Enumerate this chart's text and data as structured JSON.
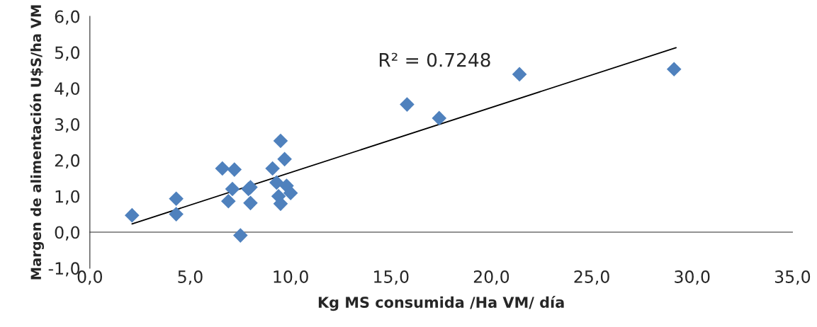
{
  "chart_data": {
    "type": "scatter",
    "xlabel": "Kg MS consumida /Ha VM/ día",
    "ylabel": "Margen de alimentación U$S/ha VM",
    "xlim": [
      0,
      35
    ],
    "ylim": [
      -1,
      6
    ],
    "xticks": [
      {
        "value": 0,
        "label": "0,0"
      },
      {
        "value": 5,
        "label": "5,0"
      },
      {
        "value": 10,
        "label": "10,0"
      },
      {
        "value": 15,
        "label": "15,0"
      },
      {
        "value": 20,
        "label": "20,0"
      },
      {
        "value": 25,
        "label": "25,0"
      },
      {
        "value": 30,
        "label": "30,0"
      },
      {
        "value": 35,
        "label": "35,0"
      }
    ],
    "yticks": [
      {
        "value": -1,
        "label": "-1,0"
      },
      {
        "value": 0,
        "label": "0,0"
      },
      {
        "value": 1,
        "label": "1,0"
      },
      {
        "value": 2,
        "label": "2,0"
      },
      {
        "value": 3,
        "label": "3,0"
      },
      {
        "value": 4,
        "label": "4,0"
      },
      {
        "value": 5,
        "label": "5,0"
      },
      {
        "value": 6,
        "label": "6,0"
      }
    ],
    "grid": false,
    "annotations": [
      "R² = 0.7248"
    ],
    "series": [
      {
        "marker": "diamond",
        "color": "#4f81bd",
        "x": [
          2.1,
          4.3,
          4.3,
          6.6,
          6.9,
          7.2,
          7.1,
          7.5,
          8.0,
          7.9,
          8.0,
          9.1,
          9.3,
          9.4,
          9.5,
          9.5,
          9.7,
          9.8,
          10.0,
          15.8,
          17.4,
          21.4,
          29.1
        ],
        "values": [
          0.47,
          0.93,
          0.5,
          1.77,
          0.86,
          1.74,
          1.2,
          -0.09,
          1.25,
          1.2,
          0.81,
          1.77,
          1.38,
          1.0,
          2.54,
          0.79,
          2.03,
          1.29,
          1.09,
          3.55,
          3.17,
          4.39,
          4.53
        ]
      },
      {
        "type": "line",
        "marker": "none",
        "color": "#000000",
        "x": [
          2.1,
          29.2
        ],
        "values": [
          0.23,
          5.13
        ]
      }
    ]
  }
}
